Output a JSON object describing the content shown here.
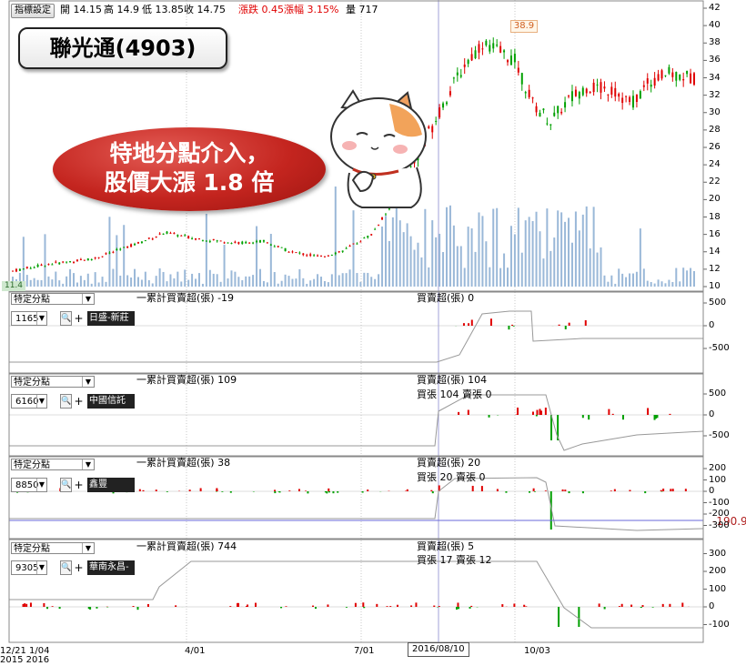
{
  "toolbar": {
    "settings_label": "指標設定"
  },
  "quote": {
    "open": "開 14.15",
    "high": "高 14.9",
    "low": "低 13.85",
    "close": "收 14.75",
    "change": "漲跌 0.45",
    "change_pct": "漲幅  3.15%",
    "volume": "量 717"
  },
  "title": "聯光通(4903)",
  "bubble": {
    "line1": "特地分點介入，",
    "line2": "股價大漲 1.8 倍"
  },
  "price_axis": {
    "ticks": [
      "42",
      "40",
      "38",
      "36",
      "34",
      "32",
      "30",
      "28",
      "26",
      "24",
      "22",
      "20",
      "18",
      "16",
      "14",
      "12",
      "10"
    ],
    "high_label": "38.9",
    "low_label": "11.4"
  },
  "panels": [
    {
      "select": "特定分點",
      "code": "1165",
      "broker": "日盛-新莊",
      "cum_label": "一累計買賣超(張) -19",
      "net_label": "買賣超(張) 0",
      "sub_label": "",
      "ticks": [
        "500",
        "0",
        "-500"
      ]
    },
    {
      "select": "特定分點",
      "code": "6160",
      "broker": "中國信託",
      "cum_label": "一累計買賣超(張) 109",
      "net_label": "買賣超(張) 104",
      "sub_label": "買張 104 賣張 0",
      "ticks": [
        "500",
        "0",
        "-500"
      ]
    },
    {
      "select": "特定分點",
      "code": "8850",
      "broker": "鑫豐",
      "cum_label": "一累計買賣超(張) 38",
      "net_label": "買賣超(張) 20",
      "sub_label": "買張 20 賣張 0",
      "ticks": [
        "200",
        "100",
        "0",
        "-100",
        "-200",
        "-300"
      ],
      "value_tag": "-190.9"
    },
    {
      "select": "特定分點",
      "code": "9305",
      "broker": "華南永昌-",
      "cum_label": "一累計買賣超(張) 744",
      "net_label": "買賣超(張) 5",
      "sub_label": "買張 17 賣張 12",
      "ticks": [
        "300",
        "200",
        "100",
        "0",
        "-100"
      ]
    }
  ],
  "x_axis": {
    "start_line1": "12/21 1/04",
    "start_line2": "2015 2016",
    "m1": "4/01",
    "m2": "7/01",
    "cursor": "2016/08/10",
    "m3": "10/03"
  },
  "colors": {
    "up": "#e00000",
    "down": "#00a000",
    "volume": "#9ab8d8",
    "grid": "#c8c8c8",
    "cursor": "#a0a0d8"
  }
}
